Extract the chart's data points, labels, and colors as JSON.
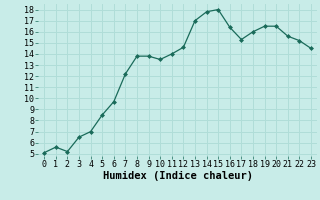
{
  "x": [
    0,
    1,
    2,
    3,
    4,
    5,
    6,
    7,
    8,
    9,
    10,
    11,
    12,
    13,
    14,
    15,
    16,
    17,
    18,
    19,
    20,
    21,
    22,
    23
  ],
  "y": [
    5.1,
    5.6,
    5.2,
    6.5,
    7.0,
    8.5,
    9.7,
    12.2,
    13.8,
    13.8,
    13.5,
    14.0,
    14.6,
    17.0,
    17.8,
    18.0,
    16.4,
    15.3,
    16.0,
    16.5,
    16.5,
    15.6,
    15.2,
    14.5
  ],
  "xlabel": "Humidex (Indice chaleur)",
  "xlim": [
    -0.5,
    23.5
  ],
  "ylim": [
    4.8,
    18.5
  ],
  "yticks": [
    5,
    6,
    7,
    8,
    9,
    10,
    11,
    12,
    13,
    14,
    15,
    16,
    17,
    18
  ],
  "xticks": [
    0,
    1,
    2,
    3,
    4,
    5,
    6,
    7,
    8,
    9,
    10,
    11,
    12,
    13,
    14,
    15,
    16,
    17,
    18,
    19,
    20,
    21,
    22,
    23
  ],
  "line_color": "#1a6b5a",
  "marker_color": "#1a6b5a",
  "bg_color": "#c8ece8",
  "grid_color": "#b0ddd8",
  "xlabel_fontsize": 7.5,
  "tick_fontsize": 6.0
}
